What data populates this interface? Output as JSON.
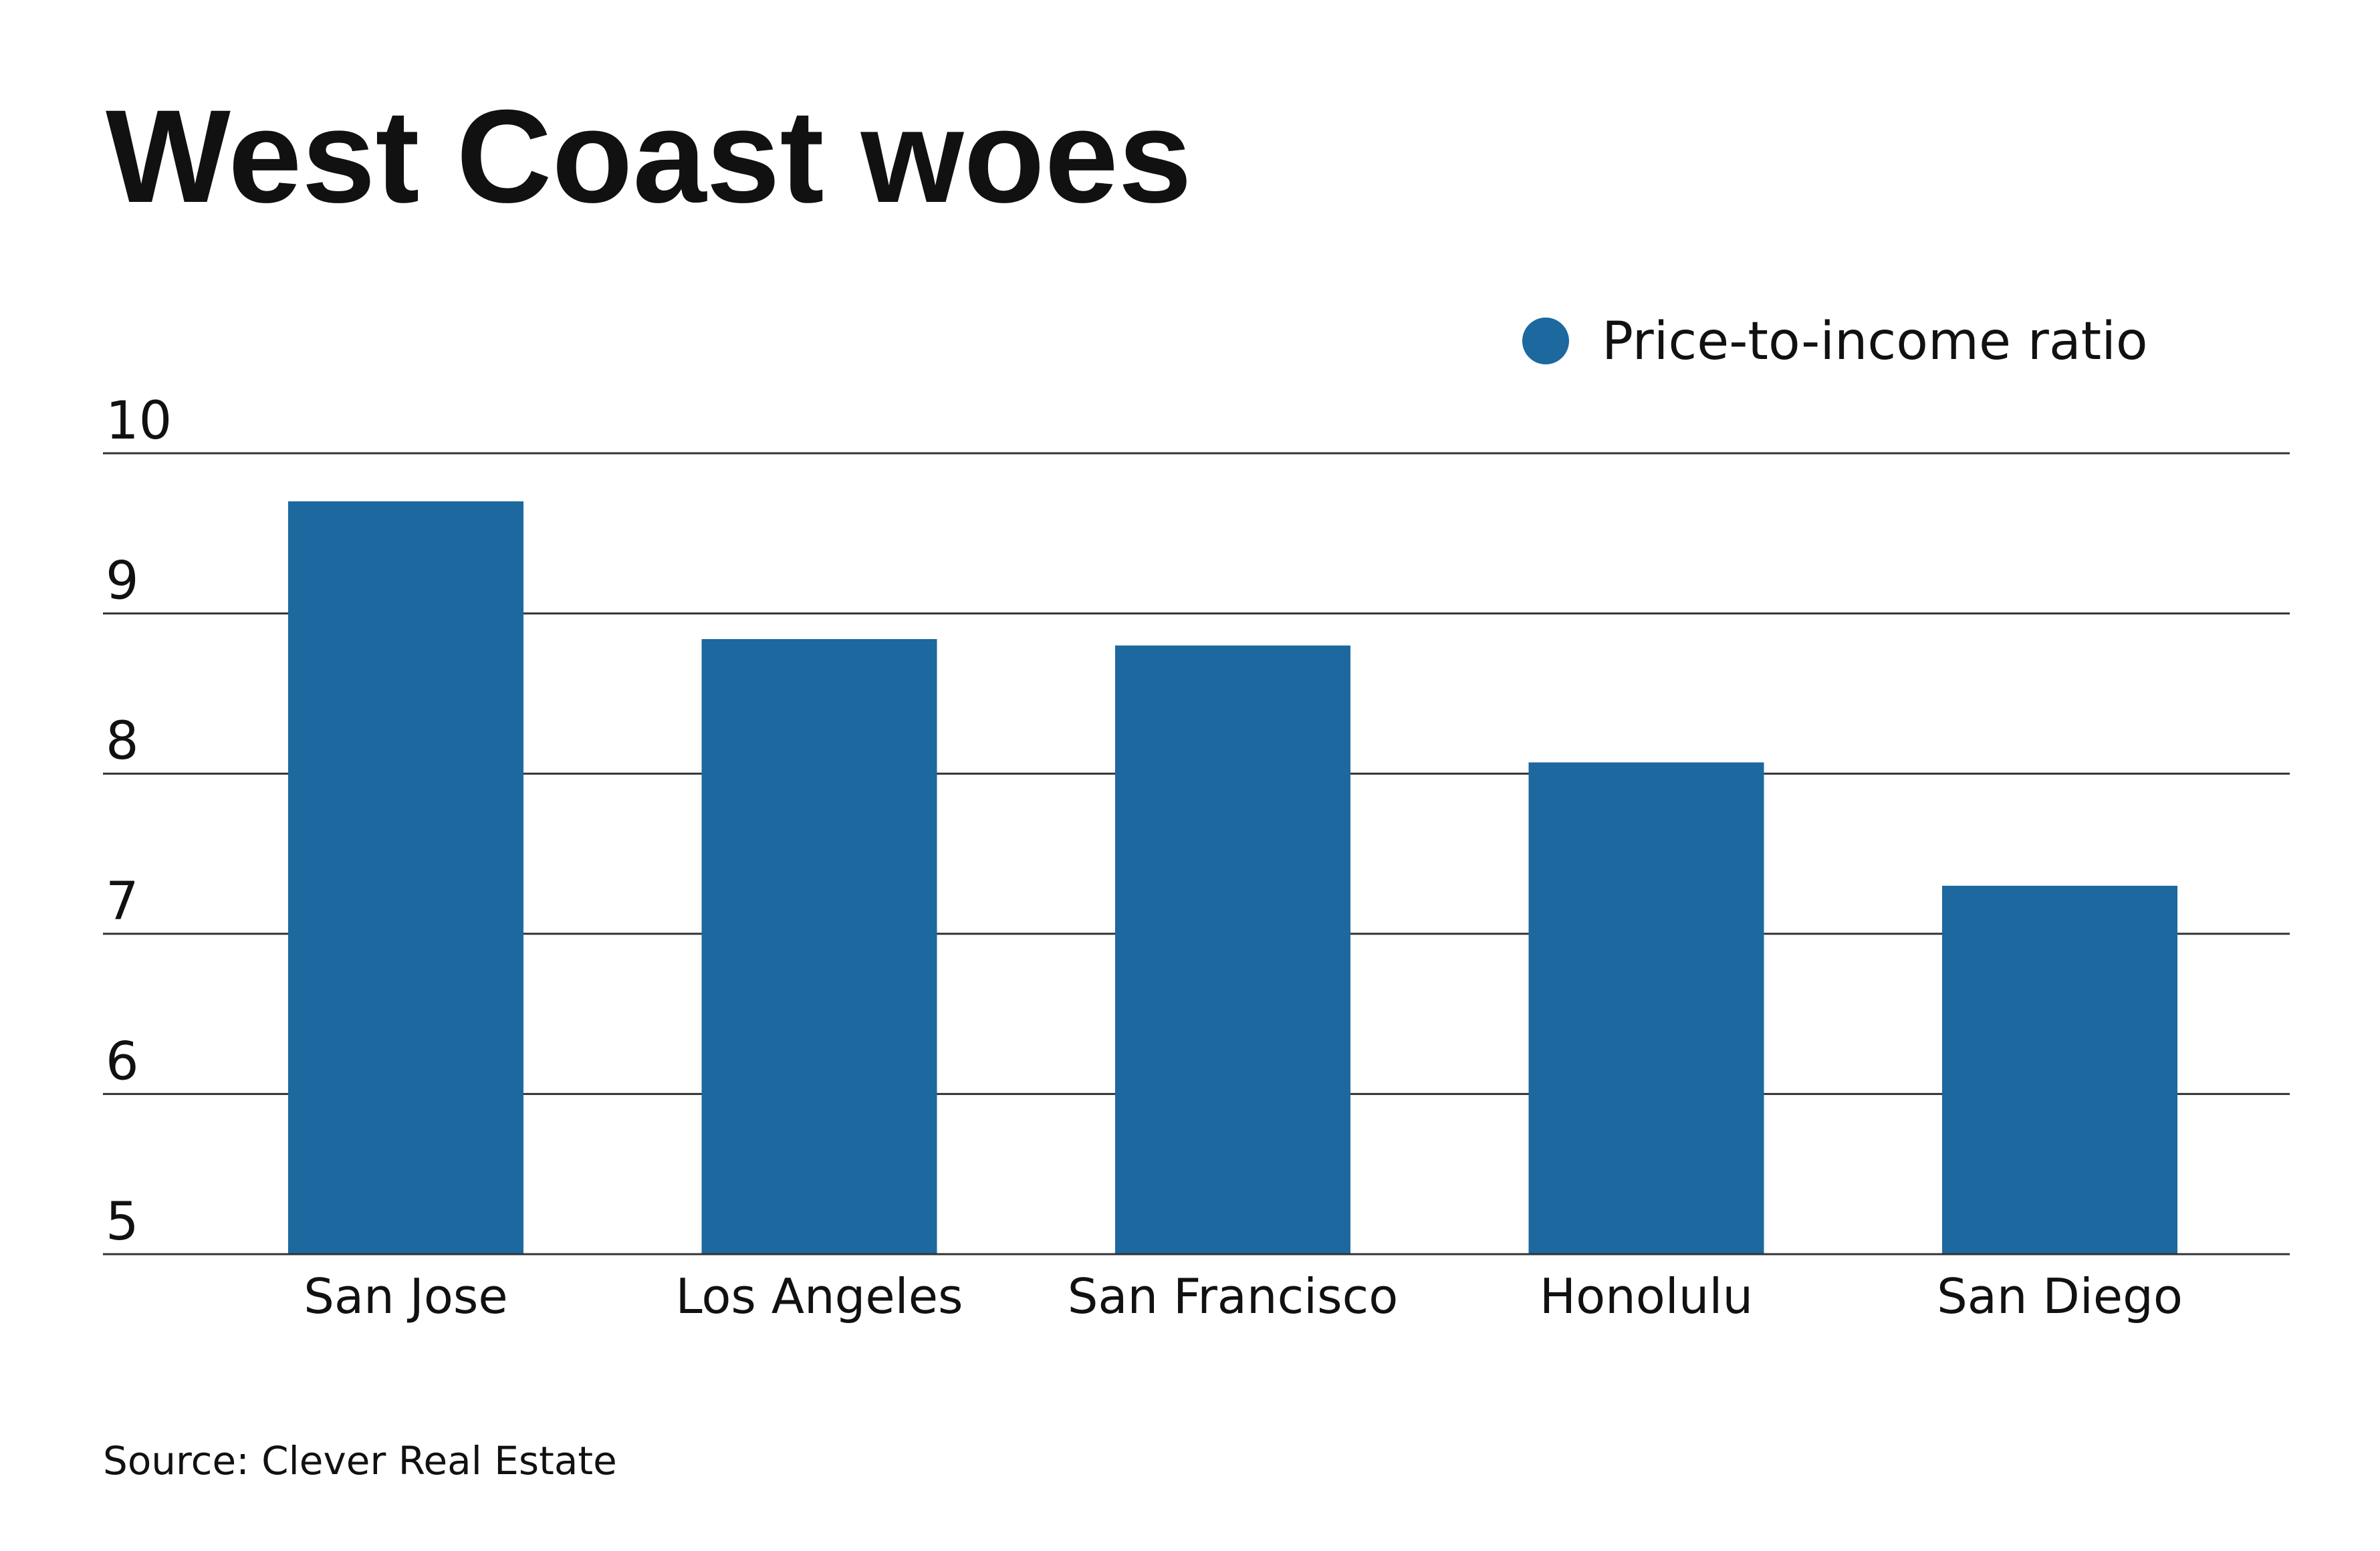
{
  "chart_data": {
    "type": "bar",
    "title": "West Coast woes",
    "legend": {
      "label": "Price-to-income ratio",
      "position": "top-right"
    },
    "categories": [
      "San Jose",
      "Los Angeles",
      "San Francisco",
      "Honolulu",
      "San Diego"
    ],
    "series": [
      {
        "name": "Price-to-income ratio",
        "values": [
          9.7,
          8.84,
          8.8,
          8.07,
          7.3
        ],
        "color": "#1c689f"
      }
    ],
    "ylim": [
      5,
      10
    ],
    "yticks": [
      "5",
      "6",
      "7",
      "8",
      "9",
      "10"
    ],
    "grid": true,
    "source": "Source: Clever Real Estate"
  }
}
